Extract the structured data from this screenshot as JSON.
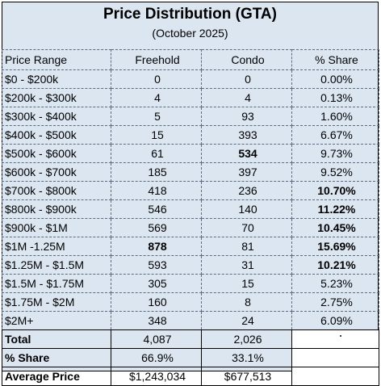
{
  "title": "Price Distribution (GTA)",
  "subtitle": "(October 2025)",
  "headers": [
    "Price Range",
    "Freehold",
    "Condo",
    "% Share"
  ],
  "rows": [
    {
      "range": "$0 - $200k",
      "freehold": "0",
      "condo": "0",
      "share": "0.00%"
    },
    {
      "range": "$200k - $300k",
      "freehold": "4",
      "condo": "4",
      "share": "0.13%"
    },
    {
      "range": "$300k - $400k",
      "freehold": "5",
      "condo": "93",
      "share": "1.60%"
    },
    {
      "range": "$400k - $500k",
      "freehold": "15",
      "condo": "393",
      "share": "6.67%"
    },
    {
      "range": "$500k - $600k",
      "freehold": "61",
      "condo": "534",
      "share": "9.73%"
    },
    {
      "range": "$600k - $700k",
      "freehold": "185",
      "condo": "397",
      "share": "9.52%"
    },
    {
      "range": "$700k - $800k",
      "freehold": "418",
      "condo": "236",
      "share": "10.70%"
    },
    {
      "range": "$800k - $900k",
      "freehold": "546",
      "condo": "140",
      "share": "11.22%"
    },
    {
      "range": "$900k - $1M",
      "freehold": "569",
      "condo": "70",
      "share": "10.45%"
    },
    {
      "range": "$1M -1.25M",
      "freehold": "878",
      "condo": "81",
      "share": "15.69%"
    },
    {
      "range": "$1.25M - $1.5M",
      "freehold": "593",
      "condo": "31",
      "share": "10.21%"
    },
    {
      "range": "$1.5M - $1.75M",
      "freehold": "305",
      "condo": "15",
      "share": "5.23%"
    },
    {
      "range": "$1.75M - $2M",
      "freehold": "160",
      "condo": "8",
      "share": "2.75%"
    },
    {
      "range": "$2M+",
      "freehold": "348",
      "condo": "24",
      "share": "6.09%"
    }
  ],
  "totals": [
    {
      "label": "Total",
      "freehold": "4,087",
      "condo": "2,026"
    },
    {
      "label": "% Share",
      "freehold": "66.9%",
      "condo": "33.1%"
    },
    {
      "label": "Average Price",
      "freehold": "$1,243,034",
      "condo": "$677,513"
    }
  ]
}
